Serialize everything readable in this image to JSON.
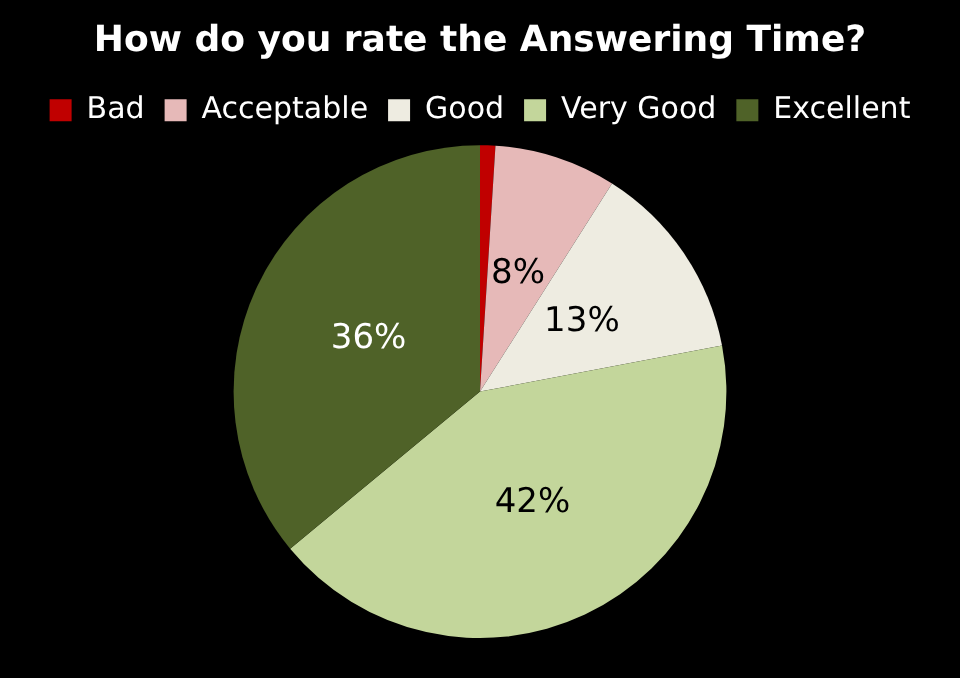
{
  "chart_data": {
    "type": "pie",
    "title": "How do you rate the Answering Time?",
    "categories": [
      "Bad",
      "Acceptable",
      "Good",
      "Very Good",
      "Excellent"
    ],
    "values": [
      1,
      8,
      13,
      42,
      36
    ],
    "colors": [
      "#c00000",
      "#e6b9b8",
      "#eeece1",
      "#c3d69b",
      "#4f6228"
    ],
    "value_labels": [
      null,
      "8%",
      "13%",
      "42%",
      "36%"
    ],
    "legend": "top"
  }
}
